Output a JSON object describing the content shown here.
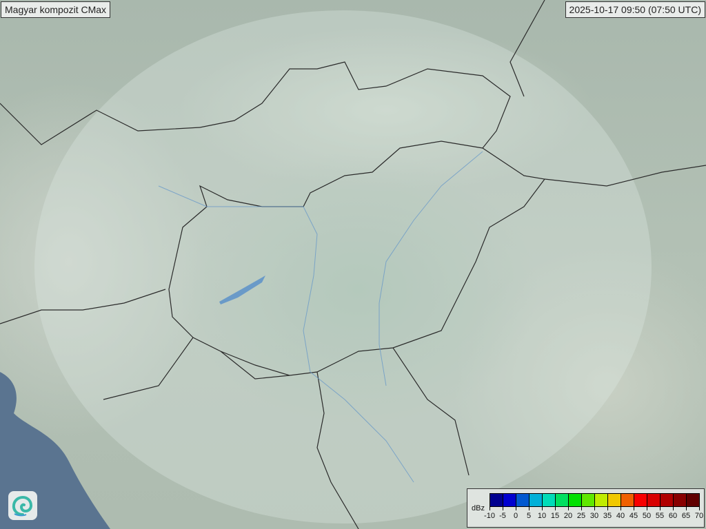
{
  "header": {
    "title": "Magyar kompozit  CMax",
    "timestamp": "2025-10-17 09:50 (07:50 UTC)"
  },
  "logo": {
    "icon": "swirl-logo-icon"
  },
  "legend": {
    "unit": "dBz",
    "tick_labels": [
      "-10",
      "-5",
      "0",
      "5",
      "10",
      "15",
      "20",
      "25",
      "30",
      "35",
      "40",
      "45",
      "50",
      "55",
      "60",
      "65",
      "70"
    ],
    "colors": [
      "#00008f",
      "#0000cf",
      "#0058d0",
      "#00b0d8",
      "#00dcb8",
      "#00e060",
      "#00e000",
      "#60e800",
      "#c0ec00",
      "#f0c800",
      "#f06000",
      "#f80000",
      "#d80000",
      "#b00000",
      "#880000",
      "#600000"
    ]
  },
  "colors": {
    "sea": "#5a7490",
    "radar_coverage": "#dce8e2",
    "border": "#2a2a2a",
    "river": "#6a9ac8"
  }
}
